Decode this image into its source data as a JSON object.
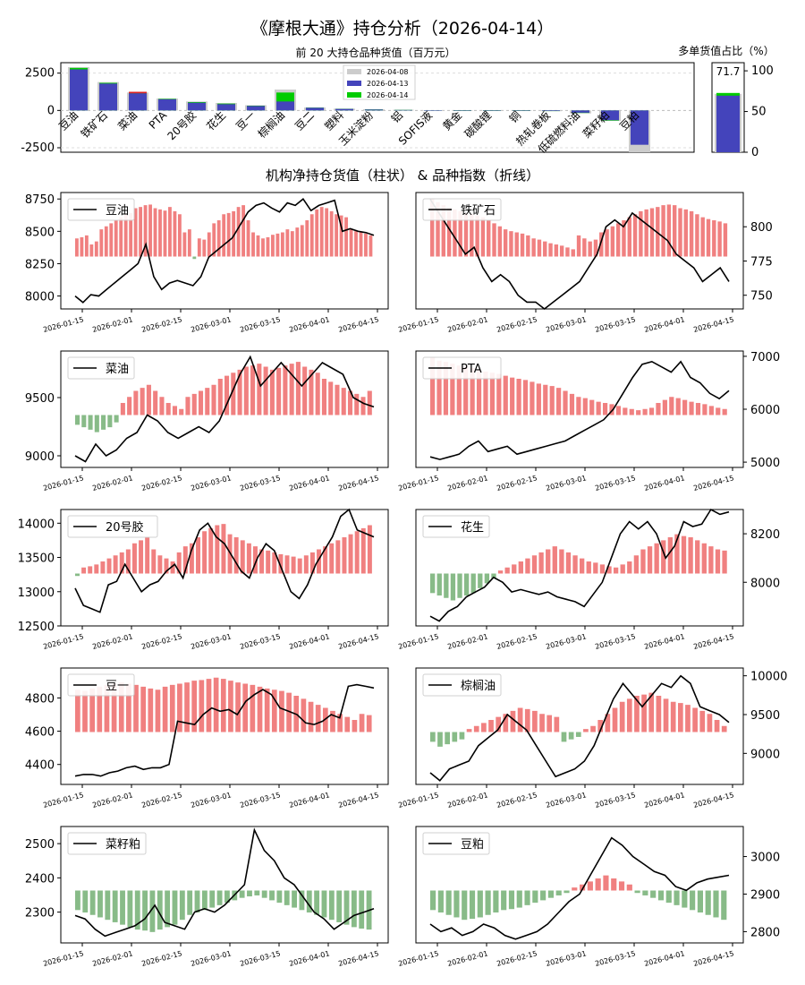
{
  "title": "《摩根大通》持仓分析（2026-04-14）",
  "top_chart": {
    "subtitle": "前 20 大持仓品种货值（百万元）",
    "type": "bar",
    "yticks": [
      "2500",
      "0",
      "-2500"
    ],
    "ylim": [
      -2800,
      3200
    ],
    "legend": [
      "2026-04-08",
      "2026-04-13",
      "2026-04-14"
    ],
    "legend_colors": [
      "#cccccc",
      "#4444bb",
      "#00cc00"
    ],
    "categories": [
      "豆油",
      "铁矿石",
      "菜油",
      "PTA",
      "20号胶",
      "花生",
      "豆一",
      "棕榈油",
      "豆二",
      "塑料",
      "玉米淀粉",
      "铝",
      "SOFIS液",
      "黄金",
      "碳酸锂",
      "铜",
      "热轧卷板",
      "低硫燃料油",
      "菜籽粕",
      "豆粕"
    ],
    "series": [
      {
        "name": "2026-04-08",
        "values": [
          2900,
          1900,
          1200,
          800,
          600,
          500,
          350,
          1400,
          200,
          120,
          80,
          40,
          20,
          0,
          0,
          0,
          -50,
          -200,
          -700,
          -2800
        ]
      },
      {
        "name": "2026-04-13",
        "values": [
          2750,
          1800,
          1150,
          750,
          520,
          420,
          300,
          600,
          180,
          100,
          60,
          30,
          15,
          0,
          0,
          0,
          -40,
          -150,
          -650,
          -2300
        ]
      },
      {
        "name": "2026-04-14",
        "values": [
          2850,
          1850,
          1250,
          780,
          560,
          460,
          320,
          1200,
          190,
          110,
          70,
          35,
          18,
          0,
          0,
          0,
          -45,
          -170,
          -680,
          -2250
        ]
      }
    ]
  },
  "side_chart": {
    "subtitle": "多单货值占比（%）",
    "value": 71.7,
    "value_label": "71.7",
    "yticks": [
      "100",
      "50",
      "0"
    ]
  },
  "section_title": "机构净持仓货值（柱状） & 品种指数（折线）",
  "xticks": [
    "2026-01-15",
    "2026-02-01",
    "2026-02-15",
    "2026-03-01",
    "2026-03-15",
    "2026-04-01",
    "2026-04-15"
  ],
  "chart_data": [
    {
      "type": "bar+line",
      "name": "豆油",
      "side": "left",
      "yticks": [
        "8750",
        "8500",
        "8250",
        "8000"
      ],
      "ylim": [
        7900,
        8800
      ],
      "bars": [
        0.3,
        0.32,
        0.35,
        0.2,
        0.25,
        0.45,
        0.5,
        0.55,
        0.6,
        0.65,
        0.7,
        0.72,
        0.8,
        0.82,
        0.85,
        0.86,
        0.8,
        0.78,
        0.76,
        0.82,
        0.75,
        0.7,
        0.4,
        0.45,
        -0.05,
        0.3,
        0.28,
        0.4,
        0.55,
        0.6,
        0.7,
        0.72,
        0.75,
        0.82,
        0.85,
        0.6,
        0.4,
        0.35,
        0.3,
        0.32,
        0.36,
        0.38,
        0.4,
        0.45,
        0.42,
        0.48,
        0.52,
        0.6,
        0.7,
        0.78,
        0.82,
        0.8,
        0.75,
        0.7,
        0.68,
        0.65,
        0.45,
        0.42,
        0.4,
        0.38,
        0.35
      ],
      "line": [
        8000,
        7950,
        8010,
        8000,
        8050,
        8100,
        8150,
        8200,
        8250,
        8400,
        8150,
        8050,
        8100,
        8120,
        8100,
        8080,
        8150,
        8300,
        8350,
        8400,
        8450,
        8550,
        8650,
        8700,
        8720,
        8680,
        8650,
        8720,
        8700,
        8750,
        8660,
        8700,
        8720,
        8740,
        8500,
        8520,
        8500,
        8490,
        8470
      ]
    },
    {
      "type": "bar+line",
      "name": "铁矿石",
      "side": "right",
      "yticks": [
        "800",
        "775",
        "750"
      ],
      "ylim": [
        740,
        825
      ],
      "bars": [
        0.95,
        0.9,
        0.85,
        0.8,
        0.78,
        0.75,
        0.72,
        0.7,
        0.68,
        0.65,
        0.6,
        0.55,
        0.5,
        0.45,
        0.42,
        0.4,
        0.38,
        0.35,
        0.3,
        0.28,
        0.25,
        0.22,
        0.2,
        0.18,
        0.15,
        0.12,
        0.35,
        0.3,
        0.25,
        0.28,
        0.4,
        0.45,
        0.5,
        0.55,
        0.6,
        0.65,
        0.7,
        0.75,
        0.78,
        0.8,
        0.82,
        0.85,
        0.86,
        0.85,
        0.8,
        0.78,
        0.75,
        0.7,
        0.65,
        0.62,
        0.6,
        0.58,
        0.55
      ],
      "line": [
        820,
        810,
        800,
        790,
        780,
        785,
        770,
        760,
        765,
        760,
        750,
        745,
        745,
        740,
        745,
        750,
        755,
        760,
        770,
        780,
        800,
        805,
        800,
        810,
        805,
        800,
        795,
        790,
        780,
        775,
        770,
        760,
        765,
        770,
        760
      ]
    },
    {
      "type": "bar+line",
      "name": "菜油",
      "side": "left",
      "yticks": [
        "9500",
        "9000"
      ],
      "ylim": [
        8900,
        9900
      ],
      "bars": [
        -0.2,
        -0.25,
        -0.3,
        -0.35,
        -0.3,
        -0.25,
        -0.15,
        0.2,
        0.3,
        0.4,
        0.45,
        0.5,
        0.4,
        0.3,
        0.2,
        0.15,
        0.1,
        0.3,
        0.35,
        0.4,
        0.45,
        0.5,
        0.6,
        0.65,
        0.7,
        0.75,
        0.8,
        0.82,
        0.85,
        0.8,
        0.75,
        0.78,
        0.82,
        0.85,
        0.88,
        0.8,
        0.75,
        0.7,
        0.6,
        0.55,
        0.5,
        0.45,
        0.4,
        0.35,
        0.3,
        0.4
      ],
      "line": [
        9000,
        8950,
        9100,
        9000,
        9050,
        9150,
        9200,
        9350,
        9300,
        9200,
        9150,
        9200,
        9250,
        9200,
        9300,
        9500,
        9700,
        9850,
        9600,
        9700,
        9800,
        9700,
        9600,
        9700,
        9800,
        9750,
        9700,
        9500,
        9450,
        9420
      ]
    },
    {
      "type": "bar+line",
      "name": "PTA",
      "side": "right",
      "yticks": [
        "7000",
        "6000",
        "5000"
      ],
      "ylim": [
        4900,
        7100
      ],
      "bars": [
        0.95,
        0.9,
        0.88,
        0.85,
        0.82,
        0.8,
        0.78,
        0.75,
        0.72,
        0.7,
        0.68,
        0.65,
        0.62,
        0.6,
        0.58,
        0.55,
        0.52,
        0.5,
        0.48,
        0.45,
        0.4,
        0.35,
        0.3,
        0.28,
        0.25,
        0.22,
        0.2,
        0.18,
        0.15,
        0.12,
        0.1,
        0.08,
        0.1,
        0.12,
        0.2,
        0.25,
        0.3,
        0.28,
        0.25,
        0.22,
        0.2,
        0.18,
        0.15,
        0.12,
        0.1
      ],
      "line": [
        5100,
        5050,
        5100,
        5150,
        5300,
        5400,
        5200,
        5250,
        5300,
        5150,
        5200,
        5250,
        5300,
        5350,
        5400,
        5500,
        5600,
        5700,
        5800,
        6000,
        6300,
        6600,
        6850,
        6900,
        6800,
        6700,
        6900,
        6600,
        6500,
        6300,
        6200,
        6350
      ]
    },
    {
      "type": "bar+line",
      "name": "20号胶",
      "side": "left",
      "yticks": [
        "14000",
        "13500",
        "13000",
        "12500"
      ],
      "ylim": [
        12500,
        14200
      ],
      "bars": [
        -0.05,
        0.1,
        0.12,
        0.15,
        0.2,
        0.25,
        0.3,
        0.35,
        0.4,
        0.5,
        0.55,
        0.6,
        0.4,
        0.3,
        0.25,
        0.2,
        0.35,
        0.45,
        0.5,
        0.6,
        0.7,
        0.75,
        0.8,
        0.82,
        0.65,
        0.6,
        0.55,
        0.5,
        0.45,
        0.4,
        0.38,
        0.35,
        0.32,
        0.3,
        0.28,
        0.25,
        0.3,
        0.35,
        0.4,
        0.45,
        0.5,
        0.55,
        0.6,
        0.65,
        0.7,
        0.75,
        0.8
      ],
      "line": [
        13050,
        12800,
        12750,
        12700,
        13100,
        13150,
        13400,
        13200,
        13000,
        13100,
        13150,
        13300,
        13400,
        13200,
        13600,
        13900,
        14000,
        13800,
        13700,
        13500,
        13300,
        13200,
        13500,
        13700,
        13600,
        13300,
        13000,
        12900,
        13100,
        13400,
        13600,
        13800,
        14100,
        14200,
        13900,
        13850,
        13800
      ]
    },
    {
      "type": "bar+line",
      "name": "花生",
      "side": "right",
      "yticks": [
        "8200",
        "8000"
      ],
      "ylim": [
        7820,
        8300
      ],
      "bars": [
        -0.4,
        -0.45,
        -0.5,
        -0.55,
        -0.5,
        -0.45,
        -0.4,
        -0.3,
        -0.2,
        -0.1,
        0.05,
        0.1,
        0.15,
        0.2,
        0.25,
        0.3,
        0.35,
        0.4,
        0.45,
        0.4,
        0.35,
        0.3,
        0.25,
        0.2,
        0.18,
        0.15,
        0.12,
        0.1,
        0.15,
        0.2,
        0.3,
        0.4,
        0.45,
        0.5,
        0.55,
        0.6,
        0.65,
        0.62,
        0.6,
        0.55,
        0.5,
        0.45,
        0.4,
        0.38
      ],
      "line": [
        7860,
        7840,
        7880,
        7900,
        7940,
        7960,
        7980,
        8020,
        8000,
        7960,
        7970,
        7960,
        7950,
        7960,
        7940,
        7930,
        7920,
        7900,
        7950,
        8000,
        8100,
        8200,
        8250,
        8220,
        8250,
        8200,
        8100,
        8150,
        8250,
        8230,
        8240,
        8300,
        8280,
        8290
      ]
    },
    {
      "type": "bar+line",
      "name": "豆一",
      "side": "left",
      "yticks": [
        "4800",
        "4600",
        "4400"
      ],
      "ylim": [
        4280,
        4980
      ],
      "bars": [
        0.7,
        0.68,
        0.72,
        0.75,
        0.78,
        0.8,
        0.82,
        0.8,
        0.78,
        0.75,
        0.72,
        0.7,
        0.75,
        0.78,
        0.8,
        0.82,
        0.85,
        0.86,
        0.88,
        0.9,
        0.88,
        0.85,
        0.82,
        0.8,
        0.78,
        0.75,
        0.72,
        0.7,
        0.68,
        0.65,
        0.6,
        0.55,
        0.5,
        0.45,
        0.4,
        0.35,
        0.3,
        0.25,
        0.2,
        0.3,
        0.28
      ],
      "line": [
        4330,
        4340,
        4340,
        4330,
        4350,
        4360,
        4380,
        4390,
        4370,
        4380,
        4380,
        4400,
        4660,
        4650,
        4640,
        4700,
        4740,
        4720,
        4730,
        4700,
        4780,
        4820,
        4850,
        4820,
        4740,
        4720,
        4700,
        4650,
        4640,
        4660,
        4700,
        4680,
        4870,
        4880,
        4870,
        4860
      ]
    },
    {
      "type": "bar+line",
      "name": "棕榈油",
      "side": "right",
      "yticks": [
        "10000",
        "9500",
        "9000"
      ],
      "ylim": [
        8600,
        10100
      ],
      "bars": [
        -0.2,
        -0.3,
        -0.25,
        -0.2,
        -0.15,
        0.05,
        0.1,
        0.15,
        0.2,
        0.25,
        0.3,
        0.35,
        0.4,
        0.38,
        0.35,
        0.3,
        0.28,
        0.25,
        -0.2,
        -0.15,
        -0.1,
        0.05,
        0.1,
        0.2,
        0.3,
        0.4,
        0.5,
        0.55,
        0.6,
        0.62,
        0.65,
        0.6,
        0.55,
        0.5,
        0.48,
        0.45,
        0.4,
        0.35,
        0.3,
        0.2,
        0.1
      ],
      "line": [
        8750,
        8650,
        8800,
        8850,
        8900,
        9100,
        9200,
        9300,
        9500,
        9400,
        9300,
        9100,
        8900,
        8700,
        8750,
        8800,
        8900,
        9100,
        9400,
        9700,
        9900,
        9750,
        9600,
        9750,
        9900,
        9850,
        10000,
        9900,
        9600,
        9550,
        9500,
        9400
      ]
    },
    {
      "type": "bar+line",
      "name": "菜籽粕",
      "side": "left",
      "yticks": [
        "2500",
        "2400",
        "2300"
      ],
      "ylim": [
        2210,
        2550
      ],
      "bars": [
        -0.4,
        -0.45,
        -0.5,
        -0.55,
        -0.6,
        -0.65,
        -0.7,
        -0.75,
        -0.8,
        -0.82,
        -0.85,
        -0.8,
        -0.75,
        -0.7,
        -0.6,
        -0.5,
        -0.45,
        -0.4,
        -0.35,
        -0.3,
        -0.25,
        -0.2,
        -0.15,
        -0.12,
        -0.1,
        -0.15,
        -0.2,
        -0.25,
        -0.3,
        -0.35,
        -0.4,
        -0.45,
        -0.5,
        -0.55,
        -0.6,
        -0.65,
        -0.7,
        -0.75,
        -0.78,
        -0.8
      ],
      "line": [
        2290,
        2280,
        2250,
        2230,
        2240,
        2250,
        2260,
        2280,
        2320,
        2270,
        2260,
        2250,
        2300,
        2310,
        2300,
        2320,
        2350,
        2380,
        2540,
        2480,
        2450,
        2400,
        2380,
        2340,
        2300,
        2280,
        2250,
        2270,
        2290,
        2300,
        2310
      ]
    },
    {
      "type": "bar+line",
      "name": "豆粕",
      "side": "right",
      "yticks": [
        "3000",
        "2900",
        "2800"
      ],
      "ylim": [
        2770,
        3080
      ],
      "bars": [
        -0.4,
        -0.45,
        -0.5,
        -0.55,
        -0.6,
        -0.58,
        -0.55,
        -0.5,
        -0.45,
        -0.4,
        -0.38,
        -0.35,
        -0.3,
        -0.25,
        -0.2,
        -0.15,
        -0.1,
        -0.05,
        0.05,
        0.1,
        0.15,
        0.2,
        0.25,
        0.2,
        0.15,
        0.1,
        -0.05,
        -0.1,
        -0.15,
        -0.2,
        -0.25,
        -0.3,
        -0.35,
        -0.4,
        -0.45,
        -0.5,
        -0.55,
        -0.6
      ],
      "line": [
        2820,
        2800,
        2810,
        2790,
        2800,
        2820,
        2810,
        2790,
        2780,
        2790,
        2800,
        2820,
        2850,
        2880,
        2900,
        2950,
        3000,
        3050,
        3030,
        3000,
        2980,
        2960,
        2950,
        2920,
        2910,
        2930,
        2940,
        2945,
        2950
      ]
    }
  ]
}
